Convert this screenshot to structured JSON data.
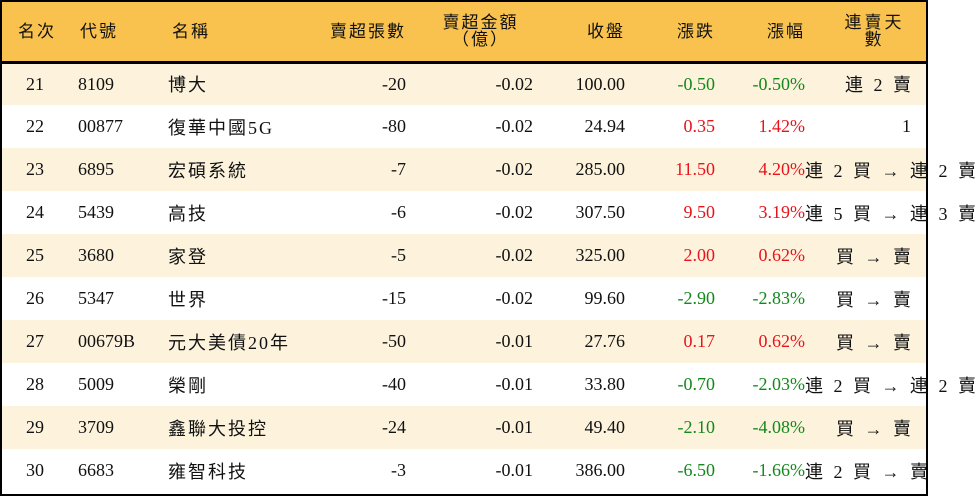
{
  "table": {
    "header": {
      "rank": "名次",
      "code": "代號",
      "name": "名稱",
      "net_sell_lots": "賣超張數",
      "net_sell_amount_line1": "賣超金額",
      "net_sell_amount_line2": "（億）",
      "close": "收盤",
      "change": "漲跌",
      "change_pct": "漲幅",
      "streak": "連賣天數"
    },
    "colors": {
      "header_bg": "#f9c24f",
      "odd_row_bg": "#fdf3dd",
      "even_row_bg": "#ffffff",
      "up": "#e8141b",
      "down": "#13891c"
    },
    "rows": [
      {
        "rank": "21",
        "code": "8109",
        "name": "博大",
        "lots": "-20",
        "amount": "-0.02",
        "close": "100.00",
        "change": "-0.50",
        "pct": "-0.50%",
        "dir": "down",
        "streak": "連 2 賣"
      },
      {
        "rank": "22",
        "code": "00877",
        "name": "復華中國5G",
        "lots": "-80",
        "amount": "-0.02",
        "close": "24.94",
        "change": "0.35",
        "pct": "1.42%",
        "dir": "up",
        "streak": "1"
      },
      {
        "rank": "23",
        "code": "6895",
        "name": "宏碩系統",
        "lots": "-7",
        "amount": "-0.02",
        "close": "285.00",
        "change": "11.50",
        "pct": "4.20%",
        "dir": "up",
        "streak": "連 2 買 → 連 2 賣"
      },
      {
        "rank": "24",
        "code": "5439",
        "name": "高技",
        "lots": "-6",
        "amount": "-0.02",
        "close": "307.50",
        "change": "9.50",
        "pct": "3.19%",
        "dir": "up",
        "streak": "連 5 買 → 連 3 賣"
      },
      {
        "rank": "25",
        "code": "3680",
        "name": "家登",
        "lots": "-5",
        "amount": "-0.02",
        "close": "325.00",
        "change": "2.00",
        "pct": "0.62%",
        "dir": "up",
        "streak": "買 → 賣"
      },
      {
        "rank": "26",
        "code": "5347",
        "name": "世界",
        "lots": "-15",
        "amount": "-0.02",
        "close": "99.60",
        "change": "-2.90",
        "pct": "-2.83%",
        "dir": "down",
        "streak": "買 → 賣"
      },
      {
        "rank": "27",
        "code": "00679B",
        "name": "元大美債20年",
        "lots": "-50",
        "amount": "-0.01",
        "close": "27.76",
        "change": "0.17",
        "pct": "0.62%",
        "dir": "up",
        "streak": "買 → 賣"
      },
      {
        "rank": "28",
        "code": "5009",
        "name": "榮剛",
        "lots": "-40",
        "amount": "-0.01",
        "close": "33.80",
        "change": "-0.70",
        "pct": "-2.03%",
        "dir": "down",
        "streak": "連 2 買 → 連 2 賣"
      },
      {
        "rank": "29",
        "code": "3709",
        "name": "鑫聯大投控",
        "lots": "-24",
        "amount": "-0.01",
        "close": "49.40",
        "change": "-2.10",
        "pct": "-4.08%",
        "dir": "down",
        "streak": "買 → 賣"
      },
      {
        "rank": "30",
        "code": "6683",
        "name": "雍智科技",
        "lots": "-3",
        "amount": "-0.01",
        "close": "386.00",
        "change": "-6.50",
        "pct": "-1.66%",
        "dir": "down",
        "streak": "連 2 買 → 賣"
      }
    ]
  }
}
